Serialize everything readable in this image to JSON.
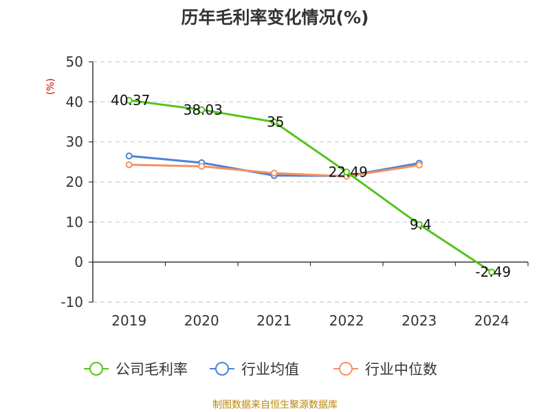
{
  "chart_data": {
    "type": "line",
    "title": "历年毛利率变化情况(%)",
    "ylabel": "(%)",
    "xlabel": "",
    "categories": [
      "2019",
      "2020",
      "2021",
      "2022",
      "2023",
      "2024"
    ],
    "ylim": [
      -10,
      50
    ],
    "yticks": [
      50,
      40,
      30,
      20,
      10,
      0,
      -10
    ],
    "grid": true,
    "legend_position": "bottom",
    "series": [
      {
        "name": "公司毛利率",
        "color": "#52c41a",
        "values": [
          40.37,
          38.03,
          35,
          22.49,
          9.4,
          -2.49
        ],
        "labels": [
          "40.37",
          "38.03",
          "35",
          "22.49",
          "9.4",
          "-2.49"
        ]
      },
      {
        "name": "行业均值",
        "color": "#4e7fd6",
        "values": [
          26.5,
          24.8,
          21.6,
          21.5,
          24.7,
          null
        ]
      },
      {
        "name": "行业中位数",
        "color": "#f4915e",
        "values": [
          24.3,
          23.9,
          22.2,
          21.4,
          24.2,
          null
        ]
      }
    ]
  },
  "footer": {
    "source": "制图数据来自恒生聚源数据库"
  }
}
